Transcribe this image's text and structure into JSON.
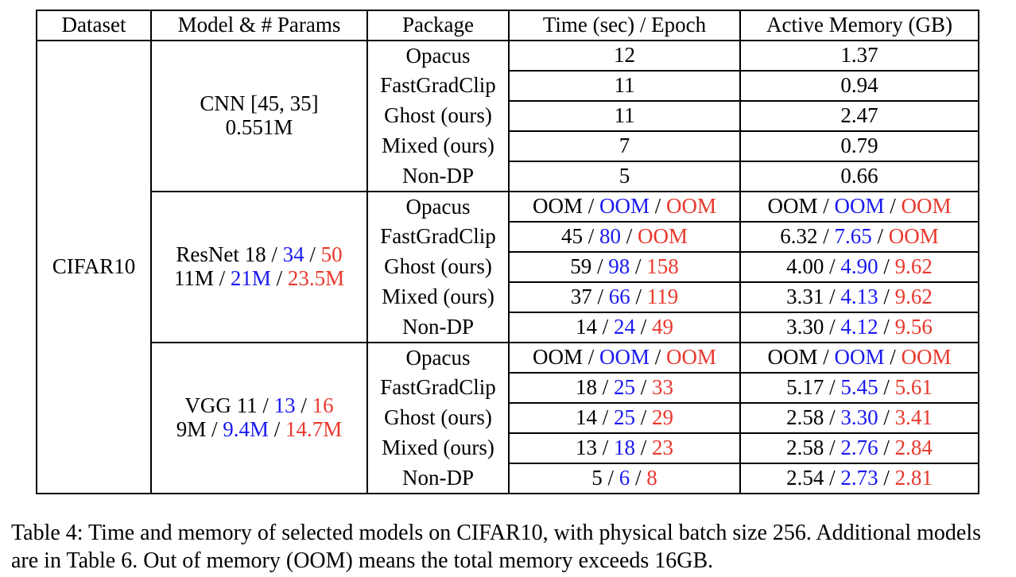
{
  "table": {
    "headers": [
      "Dataset",
      "Model &amp; # Params",
      "Package",
      "Time (sec) / Epoch",
      "Active Memory (GB)"
    ],
    "headers_plain": {
      "dataset": "Dataset",
      "model": "Model & # Params",
      "package": "Package",
      "time": "Time (sec) / Epoch",
      "memory": "Active Memory (GB)"
    },
    "dataset": "CIFAR10",
    "blocks": [
      {
        "model_line1": [
          "CNN [45, 35]"
        ],
        "model_line2": [
          "0.551M"
        ],
        "rows": [
          {
            "package": "Opacus",
            "time": [
              "12"
            ],
            "memory": [
              "1.37"
            ]
          },
          {
            "package": "FastGradClip",
            "time": [
              "11"
            ],
            "memory": [
              "0.94"
            ]
          },
          {
            "package": "Ghost (ours)",
            "time": [
              "11"
            ],
            "memory": [
              "2.47"
            ]
          },
          {
            "package": "Mixed (ours)",
            "time": [
              "7"
            ],
            "memory": [
              "0.79"
            ]
          },
          {
            "package": "Non-DP",
            "time": [
              "5"
            ],
            "memory": [
              "0.66"
            ]
          }
        ]
      },
      {
        "model_line1": [
          "ResNet 18",
          "34",
          "50"
        ],
        "model_line2": [
          "11M",
          "21M",
          "23.5M"
        ],
        "rows": [
          {
            "package": "Opacus",
            "time": [
              "OOM",
              "OOM",
              "OOM"
            ],
            "memory": [
              "OOM",
              "OOM",
              "OOM"
            ]
          },
          {
            "package": "FastGradClip",
            "time": [
              "45",
              "80",
              "OOM"
            ],
            "memory": [
              "6.32",
              "7.65",
              "OOM"
            ]
          },
          {
            "package": "Ghost (ours)",
            "time": [
              "59",
              "98",
              "158"
            ],
            "memory": [
              "4.00",
              "4.90",
              "9.62"
            ]
          },
          {
            "package": "Mixed (ours)",
            "time": [
              "37",
              "66",
              "119"
            ],
            "memory": [
              "3.31",
              "4.13",
              "9.62"
            ]
          },
          {
            "package": "Non-DP",
            "time": [
              "14",
              "24",
              "49"
            ],
            "memory": [
              "3.30",
              "4.12",
              "9.56"
            ]
          }
        ]
      },
      {
        "model_line1": [
          "VGG 11",
          "13",
          "16"
        ],
        "model_line2": [
          "9M",
          "9.4M",
          "14.7M"
        ],
        "rows": [
          {
            "package": "Opacus",
            "time": [
              "OOM",
              "OOM",
              "OOM"
            ],
            "memory": [
              "OOM",
              "OOM",
              "OOM"
            ]
          },
          {
            "package": "FastGradClip",
            "time": [
              "18",
              "25",
              "33"
            ],
            "memory": [
              "5.17",
              "5.45",
              "5.61"
            ]
          },
          {
            "package": "Ghost (ours)",
            "time": [
              "14",
              "25",
              "29"
            ],
            "memory": [
              "2.58",
              "3.30",
              "3.41"
            ]
          },
          {
            "package": "Mixed (ours)",
            "time": [
              "13",
              "18",
              "23"
            ],
            "memory": [
              "2.58",
              "2.76",
              "2.84"
            ]
          },
          {
            "package": "Non-DP",
            "time": [
              "5",
              "6",
              "8"
            ],
            "memory": [
              "2.54",
              "2.73",
              "2.81"
            ]
          }
        ]
      }
    ]
  },
  "value_separator": " / ",
  "colors": {
    "text": "#000000",
    "second_value_blue": "#1a1af0",
    "third_value_red": "#e8392e"
  },
  "caption": "Table 4: Time and memory of selected models on CIFAR10, with physical batch size 256. Additional models are in Table 6. Out of memory (OOM) means the total memory exceeds 16GB."
}
